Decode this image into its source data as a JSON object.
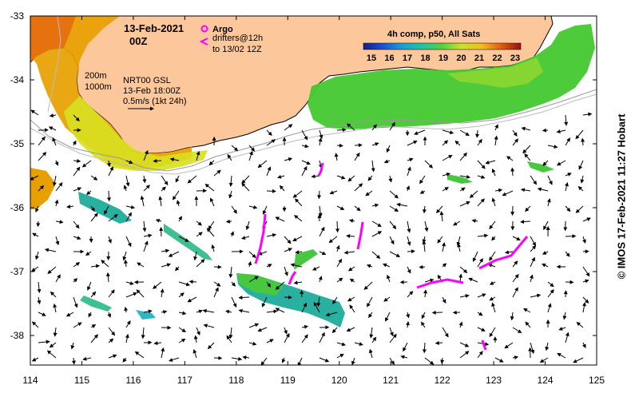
{
  "header": {
    "date": "13-Feb-2021",
    "time": "00Z"
  },
  "legend_argo": {
    "argo_label": "Argo",
    "drifters_label": "drifters@12h",
    "drifters_until": "to 13/02 12Z"
  },
  "colorbar": {
    "title": "4h comp, p50, All Sats",
    "ticks": [
      "15",
      "16",
      "17",
      "18",
      "19",
      "20",
      "21",
      "22",
      "23"
    ]
  },
  "depth_labels": {
    "d200": "200m",
    "d1000": "1000m"
  },
  "info": {
    "line1": "NRT00 GSL",
    "line2": "13-Feb 18:00Z",
    "line3": "0.5m/s (1kt 24h)"
  },
  "credit": "© IMOS 17-Feb-2021 11:27 Hobart",
  "axes": {
    "x_ticks": [
      "114",
      "115",
      "116",
      "117",
      "118",
      "119",
      "120",
      "121",
      "122",
      "123",
      "124",
      "125"
    ],
    "y_ticks": [
      "-33",
      "-34",
      "-35",
      "-36",
      "-37",
      "-38"
    ]
  },
  "colors": {
    "land": "#fcc79a",
    "argo": "#ff00ff",
    "sst_cool": "#2ab0a0",
    "sst_warm": "#e8a000"
  }
}
